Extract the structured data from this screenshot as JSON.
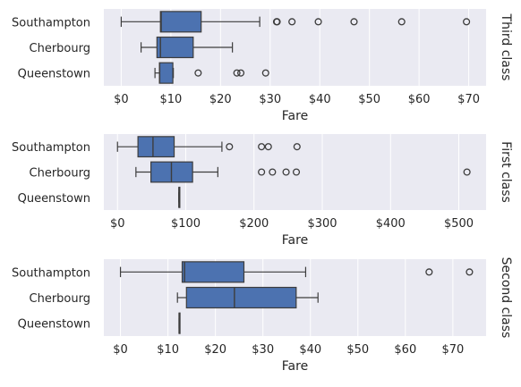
{
  "chart_data": [
    {
      "type": "box",
      "facet_label": "Third class",
      "xlabel": "Fare",
      "xlim": [
        -3.5,
        73.5
      ],
      "xticks": [
        0,
        10,
        20,
        30,
        40,
        50,
        60,
        70
      ],
      "xtick_labels": [
        "$0",
        "$10",
        "$20",
        "$30",
        "$40",
        "$50",
        "$60",
        "$70"
      ],
      "categories": [
        "Southampton",
        "Cherbourg",
        "Queenstown"
      ],
      "boxes": [
        {
          "min": 0,
          "q1": 7.9,
          "median": 8.05,
          "q3": 16.1,
          "max": 27.9,
          "outliers": [
            31.3,
            31.4,
            34.4,
            39.7,
            46.9,
            56.5,
            69.55
          ]
        },
        {
          "min": 4.0,
          "q1": 7.2,
          "median": 7.9,
          "q3": 14.5,
          "max": 22.4,
          "outliers": []
        },
        {
          "min": 6.8,
          "q1": 7.7,
          "median": 7.75,
          "q3": 10.4,
          "max": 10.5,
          "outliers": [
            15.5,
            23.3,
            24.1,
            29.1
          ]
        }
      ],
      "grid": true
    },
    {
      "type": "box",
      "facet_label": "First class",
      "xlabel": "Fare",
      "xlim": [
        -20,
        540
      ],
      "xticks": [
        0,
        100,
        200,
        300,
        400,
        500
      ],
      "xtick_labels": [
        "$0",
        "$100",
        "$200",
        "$300",
        "$400",
        "$500"
      ],
      "categories": [
        "Southampton",
        "Cherbourg",
        "Queenstown"
      ],
      "boxes": [
        {
          "min": 0,
          "q1": 30,
          "median": 52,
          "q3": 83,
          "max": 153,
          "outliers": [
            164,
            211,
            221,
            263
          ]
        },
        {
          "min": 27,
          "q1": 49,
          "median": 79,
          "q3": 110,
          "max": 147,
          "outliers": [
            211,
            227,
            247,
            262,
            512
          ]
        },
        {
          "min": 90,
          "q1": 90,
          "median": 90,
          "q3": 90,
          "max": 90,
          "outliers": []
        }
      ],
      "grid": true
    },
    {
      "type": "box",
      "facet_label": "Second class",
      "xlabel": "Fare",
      "xlim": [
        -3.5,
        77
      ],
      "xticks": [
        0,
        10,
        20,
        30,
        40,
        50,
        60,
        70
      ],
      "xtick_labels": [
        "$0",
        "$10",
        "$20",
        "$30",
        "$40",
        "$50",
        "$60",
        "$70"
      ],
      "categories": [
        "Southampton",
        "Cherbourg",
        "Queenstown"
      ],
      "boxes": [
        {
          "min": 0,
          "q1": 13,
          "median": 13.5,
          "q3": 26,
          "max": 39,
          "outliers": [
            65,
            73.5
          ]
        },
        {
          "min": 12,
          "q1": 13.9,
          "median": 24,
          "q3": 37,
          "max": 41.6,
          "outliers": []
        },
        {
          "min": 12.35,
          "q1": 12.35,
          "median": 12.35,
          "q3": 12.35,
          "max": 12.35,
          "outliers": []
        }
      ],
      "grid": true
    }
  ],
  "colors": {
    "box_fill": "#4c72b0",
    "plot_bg": "#eaeaf2",
    "grid": "#ffffff",
    "line": "#3d3d3d"
  }
}
